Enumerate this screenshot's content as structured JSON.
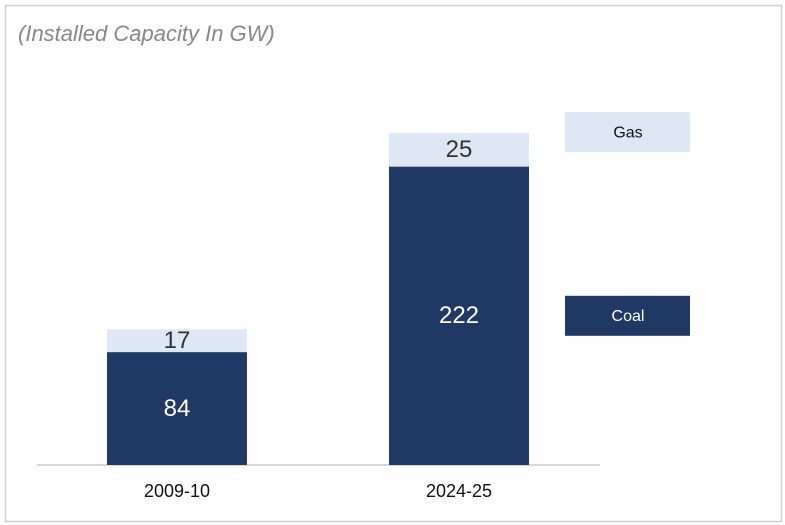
{
  "chart_data": {
    "type": "stacked_bar",
    "title": "(Installed Capacity In GW)",
    "categories": [
      "2009-10",
      "2024-25"
    ],
    "series": [
      {
        "name": "Coal",
        "color": "#1f3864",
        "values": [
          84,
          222
        ]
      },
      {
        "name": "Gas",
        "color": "#dde8f4",
        "values": [
          17,
          25
        ]
      }
    ]
  }
}
